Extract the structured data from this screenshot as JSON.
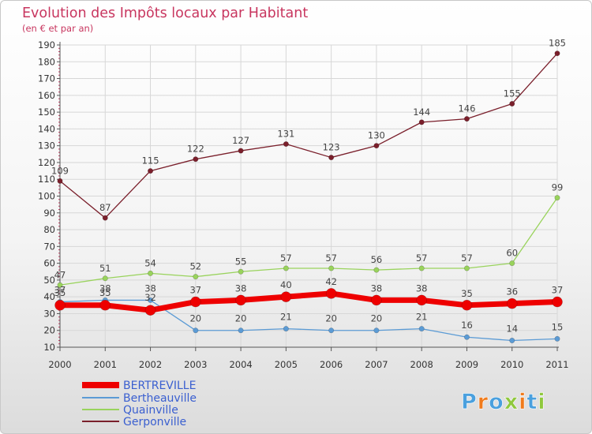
{
  "title": "Evolution des Impôts locaux par Habitant",
  "subtitle": "(en € et par an)",
  "logo": "Proxiti",
  "colors": {
    "title": "#c8365f",
    "BERTREVILLE": "#ee0000",
    "Bertheauville": "#5b9bd5",
    "Quainville": "#99d35c",
    "Gerponville": "#7a1f2b"
  },
  "chart_data": {
    "type": "line",
    "title": "Evolution des Impôts locaux par Habitant",
    "subtitle": "(en € et par an)",
    "xlabel": "",
    "ylabel": "",
    "categories": [
      "2000",
      "2001",
      "2002",
      "2003",
      "2004",
      "2005",
      "2006",
      "2007",
      "2008",
      "2009",
      "2010",
      "2011"
    ],
    "ylim": [
      10,
      190
    ],
    "yticks": [
      10,
      20,
      30,
      40,
      50,
      60,
      70,
      80,
      90,
      100,
      110,
      120,
      130,
      140,
      150,
      160,
      170,
      180,
      190
    ],
    "grid": true,
    "legend_position": "bottom-left",
    "series": [
      {
        "name": "BERTREVILLE",
        "values": [
          35,
          35,
          32,
          37,
          38,
          40,
          42,
          38,
          38,
          35,
          36,
          37
        ]
      },
      {
        "name": "Bertheauville",
        "values": [
          37,
          38,
          38,
          20,
          20,
          21,
          20,
          20,
          21,
          16,
          14,
          15
        ]
      },
      {
        "name": "Quainville",
        "values": [
          47,
          51,
          54,
          52,
          55,
          57,
          57,
          56,
          57,
          57,
          60,
          99
        ]
      },
      {
        "name": "Gerponville",
        "values": [
          109,
          87,
          115,
          122,
          127,
          131,
          123,
          130,
          144,
          146,
          155,
          185
        ]
      }
    ]
  }
}
